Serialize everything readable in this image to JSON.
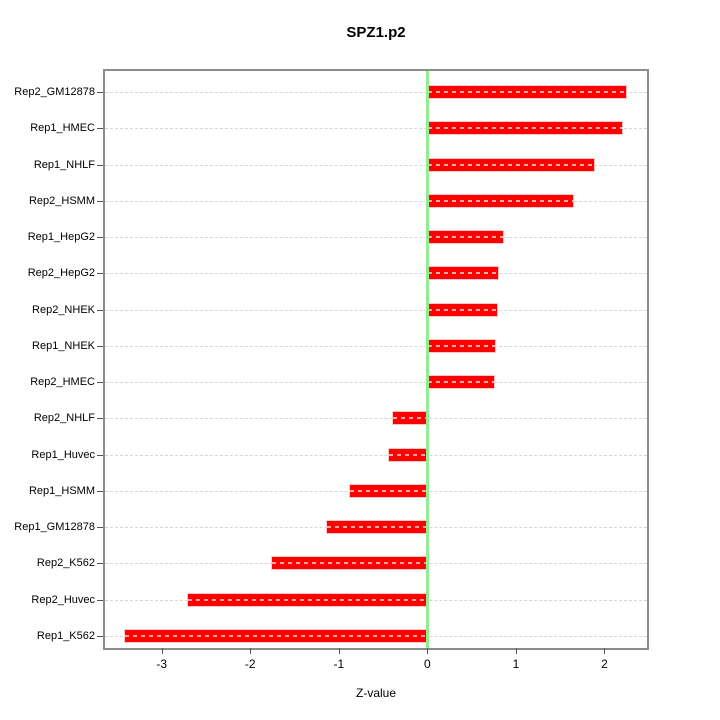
{
  "chart_data": {
    "type": "bar",
    "orientation": "horizontal",
    "title": "SPZ1.p2",
    "xlabel": "Z-value",
    "ylabel": "",
    "categories": [
      "Rep2_GM12878",
      "Rep1_HMEC",
      "Rep1_NHLF",
      "Rep2_HSMM",
      "Rep1_HepG2",
      "Rep2_HepG2",
      "Rep2_NHEK",
      "Rep1_NHEK",
      "Rep2_HMEC",
      "Rep2_NHLF",
      "Rep1_Huvec",
      "Rep1_HSMM",
      "Rep1_GM12878",
      "Rep2_K562",
      "Rep2_Huvec",
      "Rep1_K562"
    ],
    "values": [
      2.25,
      2.21,
      1.89,
      1.66,
      0.86,
      0.81,
      0.8,
      0.78,
      0.76,
      -0.4,
      -0.44,
      -0.89,
      -1.15,
      -1.77,
      -2.71,
      -3.42
    ],
    "xticks": [
      "-3",
      "-2",
      "-1",
      "0",
      "1",
      "2"
    ],
    "xtick_values": [
      -3,
      -2,
      -1,
      0,
      1,
      2
    ],
    "xlim": [
      -3.64,
      2.48
    ],
    "grid": true,
    "zero_line_value": 0,
    "legend": "none",
    "colors": {
      "bar": "#FF0000",
      "bar_border": "#FFC8C8",
      "zero_line": "#90EE90",
      "gridline": "#D6D6D6",
      "axis_box": "#8C8C8C",
      "text": "#000000"
    }
  }
}
